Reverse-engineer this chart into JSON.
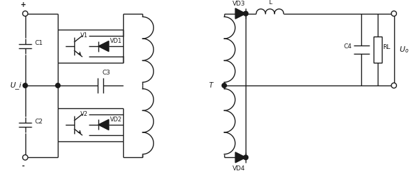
{
  "fig_width": 6.09,
  "fig_height": 2.48,
  "dpi": 100,
  "line_color": "#1a1a1a",
  "lw": 1.0,
  "bg_color": "#ffffff",
  "labels": {
    "plus": "+",
    "minus": "-",
    "Ui": "U_i",
    "C1": "C1",
    "C2": "C2",
    "C3": "C3",
    "V1": "V1",
    "V2": "V2",
    "VD1": "VD1",
    "VD2": "VD2",
    "VD3": "VD3",
    "VD4": "VD4",
    "L": "L",
    "T": "T",
    "C4": "C4",
    "RL": "RL",
    "Uo": "U_o"
  }
}
